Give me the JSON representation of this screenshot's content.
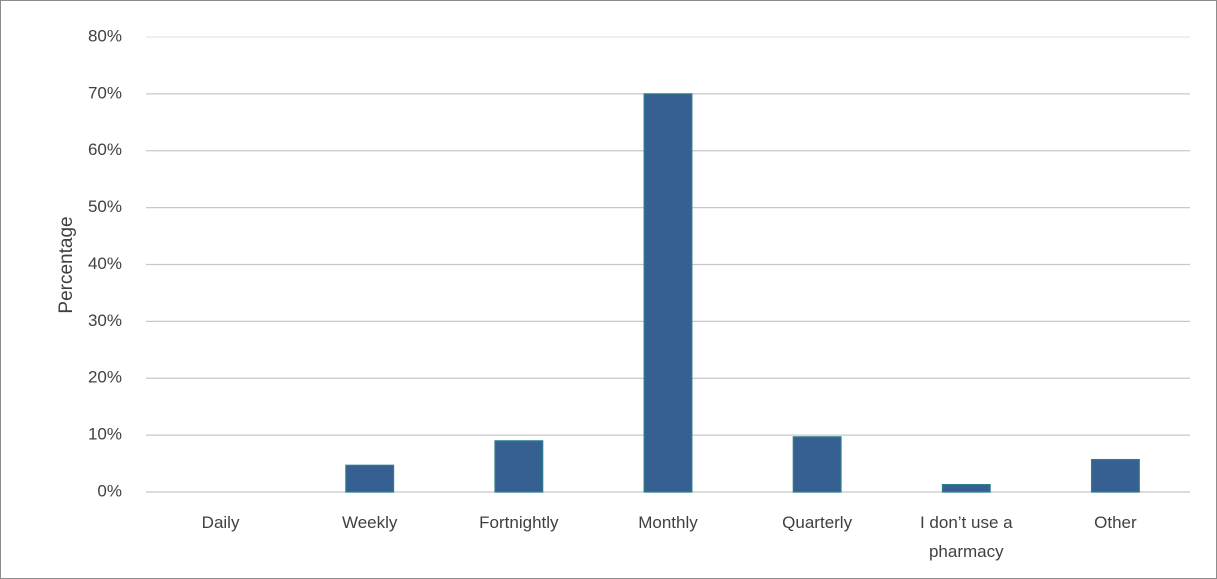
{
  "chart_data": {
    "type": "bar",
    "ylabel": "Percentage",
    "categories": [
      "Daily",
      "Weekly",
      "Fortnightly",
      "Monthly",
      "Quarterly",
      "I don’t use a pharmacy",
      "Other"
    ],
    "category_lines": [
      [
        "Daily"
      ],
      [
        "Weekly"
      ],
      [
        "Fortnightly"
      ],
      [
        "Monthly"
      ],
      [
        "Quarterly"
      ],
      [
        "I don’t use a",
        "pharmacy"
      ],
      [
        "Other"
      ]
    ],
    "values": [
      0,
      4.7,
      9,
      70,
      9.7,
      1.3,
      5.7
    ],
    "yticks": [
      "0%",
      "10%",
      "20%",
      "30%",
      "40%",
      "50%",
      "60%",
      "70%",
      "80%"
    ],
    "ylim": [
      0,
      80
    ],
    "grid": true,
    "legend": false,
    "bar_color": "#376092"
  }
}
